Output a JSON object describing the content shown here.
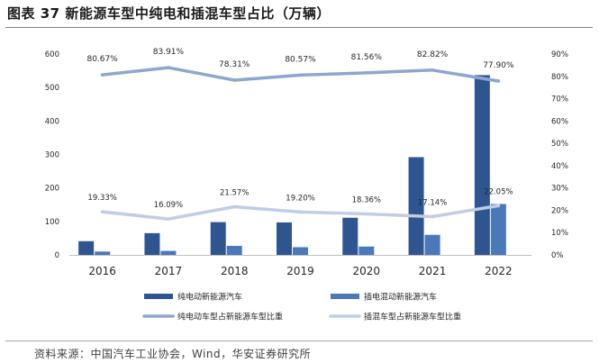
{
  "header": {
    "title": "图表 37 新能源车型中纯电和插混车型占比（万辆）"
  },
  "footer": {
    "source": "资料来源：中国汽车工业协会，Wind，华安证券研究所"
  },
  "colors": {
    "bev_bar": "#2f5590",
    "phev_bar": "#4a78b8",
    "bev_share_line": "#8ea6cf",
    "phev_share_line": "#c0cde4",
    "axis": "#bfbfbf"
  },
  "chart_data": {
    "type": "bar",
    "categories": [
      "2016",
      "2017",
      "2018",
      "2019",
      "2020",
      "2021",
      "2022"
    ],
    "series": [
      {
        "name": "纯电动新能源汽车",
        "type": "bar",
        "axis": "left",
        "values": [
          41,
          65,
          98,
          97,
          111,
          292,
          537
        ]
      },
      {
        "name": "插电混动新能源汽车",
        "type": "bar",
        "axis": "left",
        "values": [
          10,
          12,
          27,
          23,
          25,
          60,
          152
        ]
      },
      {
        "name": "纯电动车型占新能源车型比重",
        "type": "line",
        "axis": "right",
        "values": [
          80.67,
          83.91,
          78.31,
          80.57,
          81.56,
          82.82,
          77.9
        ],
        "labels": [
          "80.67%",
          "83.91%",
          "78.31%",
          "80.57%",
          "81.56%",
          "82.82%",
          "77.90%"
        ]
      },
      {
        "name": "插混车型占新能源车型比重",
        "type": "line",
        "axis": "right",
        "values": [
          19.33,
          16.09,
          21.57,
          19.2,
          18.36,
          17.14,
          22.05
        ],
        "labels": [
          "19.33%",
          "16.09%",
          "21.57%",
          "19.20%",
          "18.36%",
          "17.14%",
          "22.05%"
        ]
      }
    ],
    "y_left": {
      "min": 0,
      "max": 600,
      "ticks": [
        "0",
        "100",
        "200",
        "300",
        "400",
        "500",
        "600"
      ]
    },
    "y_right": {
      "min": 0,
      "max": 90,
      "ticks": [
        "0%",
        "10%",
        "20%",
        "30%",
        "40%",
        "50%",
        "60%",
        "70%",
        "80%",
        "90%"
      ]
    },
    "grid": false,
    "legend_position": "bottom"
  }
}
